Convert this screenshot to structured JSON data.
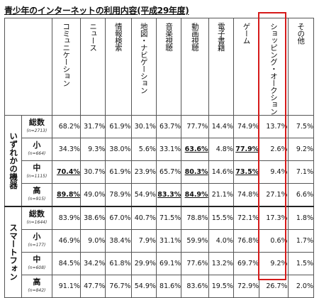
{
  "title": "青少年のインターネットの利用内容(平成29年度)",
  "columns": [
    "コミュニケーション",
    "ニュース",
    "情報検索",
    "地図・ナビゲーション",
    "音楽視聴",
    "動画視聴",
    "電子書籍",
    "ゲーム",
    "ショッピング・オークション",
    "その他"
  ],
  "groups": [
    {
      "label": "いずれかの機器",
      "rows": [
        {
          "label": "総数",
          "n": "(n=2713)",
          "values": [
            "68.2%",
            "31.7%",
            "61.9%",
            "30.1%",
            "63.7%",
            "77.7%",
            "14.4%",
            "74.9%",
            "13.7%",
            "7.5%"
          ],
          "bold": []
        },
        {
          "label": "小",
          "n": "(n=664)",
          "values": [
            "34.3%",
            "9.3%",
            "38.0%",
            "5.6%",
            "33.1%",
            "63.6%",
            "4.8%",
            "77.9%",
            "2.6%",
            "9.2%"
          ],
          "bold": [
            5,
            7
          ]
        },
        {
          "label": "中",
          "n": "(n=1115)",
          "values": [
            "70.4%",
            "30.7%",
            "61.9%",
            "23.9%",
            "65.7%",
            "80.3%",
            "14.6%",
            "73.5%",
            "9.4%",
            "7.1%"
          ],
          "bold": [
            0,
            5,
            7
          ]
        },
        {
          "label": "高",
          "n": "(n=915)",
          "values": [
            "89.8%",
            "49.0%",
            "78.9%",
            "54.9%",
            "83.3%",
            "84.9%",
            "21.1%",
            "74.8%",
            "27.1%",
            "6.6%"
          ],
          "bold": [
            0,
            4,
            5
          ]
        }
      ]
    },
    {
      "label": "スマートフォン",
      "rows": [
        {
          "label": "総数",
          "n": "(n=1644)",
          "values": [
            "83.9%",
            "38.6%",
            "67.0%",
            "40.7%",
            "71.5%",
            "78.8%",
            "15.5%",
            "72.1%",
            "17.3%",
            "1.8%"
          ],
          "bold": []
        },
        {
          "label": "小",
          "n": "(n=177)",
          "values": [
            "46.9%",
            "9.0%",
            "38.4%",
            "7.9%",
            "31.1%",
            "59.9%",
            "4.0%",
            "76.8%",
            "0.6%",
            "1.7%"
          ],
          "bold": []
        },
        {
          "label": "中",
          "n": "(n=608)",
          "values": [
            "84.5%",
            "34.2%",
            "61.8%",
            "29.9%",
            "69.1%",
            "77.6%",
            "13.2%",
            "69.7%",
            "9.2%",
            "1.5%"
          ],
          "bold": []
        },
        {
          "label": "高",
          "n": "(n=842)",
          "values": [
            "91.1%",
            "47.7%",
            "76.7%",
            "54.9%",
            "81.6%",
            "83.6%",
            "19.5%",
            "72.9%",
            "26.7%",
            "2.0%"
          ],
          "bold": []
        }
      ]
    }
  ],
  "highlight_column": "ショッピング・オークション",
  "colors": {
    "highlight": "#d61a1a",
    "border": "#555555"
  }
}
